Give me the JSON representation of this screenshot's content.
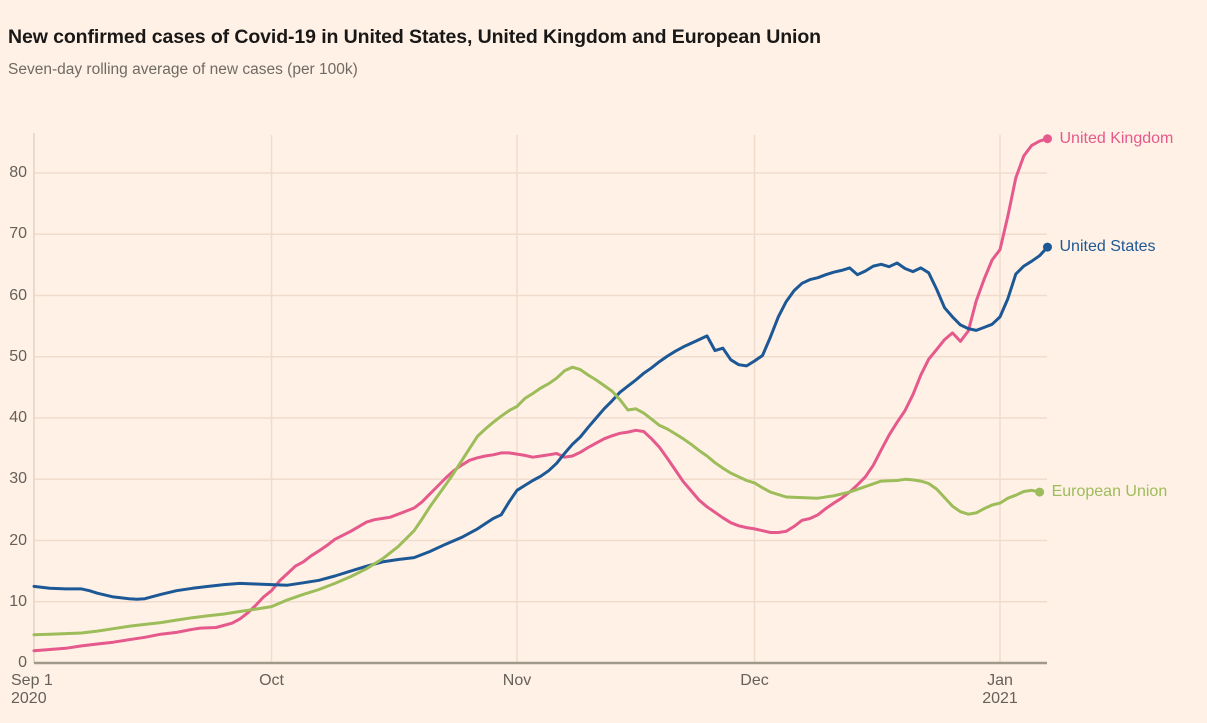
{
  "header": {
    "title": "New confirmed cases of Covid-19 in United States, United Kingdom and European Union",
    "subtitle": "Seven-day rolling average of new cases (per 100k)"
  },
  "style": {
    "background": "#fff1e5",
    "grid_color": "#f0dccd",
    "y_axis_line_color": "#e3d3c4",
    "zero_line_color": "#a09888",
    "tick_text_color": "#66605b",
    "title_text_color": "#1a1817",
    "subtitle_text_color": "#6f6b64"
  },
  "chart_data": {
    "type": "line",
    "title": "New confirmed cases of Covid-19 in United States, United Kingdom and European Union",
    "subtitle": "Seven-day rolling average of new cases (per 100k)",
    "x_unit": "days since Sep 1, 2020",
    "grid": true,
    "legend_position": "line-end-labels-right",
    "y_axis": {
      "ticks": [
        0,
        10,
        20,
        30,
        40,
        50,
        60,
        70,
        80
      ],
      "max_visible": 86
    },
    "x_axis": {
      "ticks": [
        {
          "label": "Sep 1",
          "sublabel": "2020",
          "day": 0,
          "align": "left"
        },
        {
          "label": "Oct",
          "day": 30
        },
        {
          "label": "Nov",
          "day": 61
        },
        {
          "label": "Dec",
          "day": 91
        },
        {
          "label": "Jan",
          "sublabel": "2021",
          "day": 122
        }
      ]
    },
    "series": [
      {
        "label": "United Kingdom",
        "color": "#e5598c",
        "points": [
          [
            0,
            2.0
          ],
          [
            2,
            2.2
          ],
          [
            4,
            2.4
          ],
          [
            6,
            2.8
          ],
          [
            8,
            3.1
          ],
          [
            10,
            3.4
          ],
          [
            12,
            3.8
          ],
          [
            14,
            4.2
          ],
          [
            16,
            4.7
          ],
          [
            18,
            5.0
          ],
          [
            20,
            5.5
          ],
          [
            21,
            5.7
          ],
          [
            23,
            5.8
          ],
          [
            25,
            6.5
          ],
          [
            26,
            7.2
          ],
          [
            27,
            8.2
          ],
          [
            28,
            9.4
          ],
          [
            29,
            10.8
          ],
          [
            30,
            11.8
          ],
          [
            31,
            13.4
          ],
          [
            32,
            14.6
          ],
          [
            33,
            15.8
          ],
          [
            34,
            16.5
          ],
          [
            35,
            17.5
          ],
          [
            36,
            18.3
          ],
          [
            37,
            19.2
          ],
          [
            38,
            20.2
          ],
          [
            40,
            21.5
          ],
          [
            42,
            23.0
          ],
          [
            43,
            23.4
          ],
          [
            45,
            23.8
          ],
          [
            47,
            24.8
          ],
          [
            48,
            25.3
          ],
          [
            49,
            26.3
          ],
          [
            50,
            27.6
          ],
          [
            51,
            28.9
          ],
          [
            52,
            30.2
          ],
          [
            53,
            31.4
          ],
          [
            54,
            32.3
          ],
          [
            55,
            33.1
          ],
          [
            56,
            33.5
          ],
          [
            57,
            33.8
          ],
          [
            58,
            34.0
          ],
          [
            59,
            34.3
          ],
          [
            60,
            34.3
          ],
          [
            61,
            34.1
          ],
          [
            62,
            33.9
          ],
          [
            63,
            33.6
          ],
          [
            64,
            33.8
          ],
          [
            65,
            34.0
          ],
          [
            66,
            34.2
          ],
          [
            67,
            33.6
          ],
          [
            68,
            33.8
          ],
          [
            69,
            34.4
          ],
          [
            70,
            35.2
          ],
          [
            71,
            35.9
          ],
          [
            72,
            36.6
          ],
          [
            73,
            37.1
          ],
          [
            74,
            37.5
          ],
          [
            75,
            37.7
          ],
          [
            76,
            38.0
          ],
          [
            77,
            37.8
          ],
          [
            78,
            36.6
          ],
          [
            79,
            35.2
          ],
          [
            80,
            33.4
          ],
          [
            81,
            31.5
          ],
          [
            82,
            29.6
          ],
          [
            83,
            28.1
          ],
          [
            84,
            26.6
          ],
          [
            85,
            25.5
          ],
          [
            86,
            24.6
          ],
          [
            87,
            23.7
          ],
          [
            88,
            22.9
          ],
          [
            89,
            22.4
          ],
          [
            90,
            22.1
          ],
          [
            91,
            21.9
          ],
          [
            92,
            21.6
          ],
          [
            93,
            21.3
          ],
          [
            94,
            21.3
          ],
          [
            95,
            21.5
          ],
          [
            96,
            22.3
          ],
          [
            97,
            23.3
          ],
          [
            98,
            23.6
          ],
          [
            99,
            24.2
          ],
          [
            100,
            25.2
          ],
          [
            101,
            26.1
          ],
          [
            102,
            26.9
          ],
          [
            103,
            27.9
          ],
          [
            104,
            29.1
          ],
          [
            105,
            30.4
          ],
          [
            106,
            32.3
          ],
          [
            107,
            34.8
          ],
          [
            108,
            37.2
          ],
          [
            109,
            39.3
          ],
          [
            110,
            41.2
          ],
          [
            111,
            43.8
          ],
          [
            112,
            47.0
          ],
          [
            113,
            49.6
          ],
          [
            114,
            51.2
          ],
          [
            115,
            52.8
          ],
          [
            116,
            53.9
          ],
          [
            117,
            52.5
          ],
          [
            118,
            54.2
          ],
          [
            119,
            59.1
          ],
          [
            120,
            62.7
          ],
          [
            121,
            65.8
          ],
          [
            122,
            67.5
          ],
          [
            123,
            73.0
          ],
          [
            124,
            79.2
          ],
          [
            125,
            82.8
          ],
          [
            126,
            84.5
          ],
          [
            127,
            85.2
          ],
          [
            128,
            85.6
          ]
        ]
      },
      {
        "label": "United States",
        "color": "#1d5896",
        "points": [
          [
            0,
            12.5
          ],
          [
            2,
            12.2
          ],
          [
            4,
            12.1
          ],
          [
            6,
            12.1
          ],
          [
            7,
            11.8
          ],
          [
            8,
            11.4
          ],
          [
            10,
            10.8
          ],
          [
            12,
            10.5
          ],
          [
            13,
            10.4
          ],
          [
            14,
            10.5
          ],
          [
            16,
            11.2
          ],
          [
            18,
            11.8
          ],
          [
            20,
            12.2
          ],
          [
            22,
            12.5
          ],
          [
            24,
            12.8
          ],
          [
            26,
            13.0
          ],
          [
            28,
            12.9
          ],
          [
            30,
            12.8
          ],
          [
            32,
            12.7
          ],
          [
            34,
            13.1
          ],
          [
            36,
            13.5
          ],
          [
            38,
            14.2
          ],
          [
            40,
            15.0
          ],
          [
            42,
            15.8
          ],
          [
            44,
            16.5
          ],
          [
            46,
            16.9
          ],
          [
            48,
            17.2
          ],
          [
            50,
            18.2
          ],
          [
            52,
            19.4
          ],
          [
            54,
            20.5
          ],
          [
            56,
            21.9
          ],
          [
            58,
            23.6
          ],
          [
            59,
            24.2
          ],
          [
            60,
            26.3
          ],
          [
            61,
            28.2
          ],
          [
            62,
            29.0
          ],
          [
            63,
            29.8
          ],
          [
            64,
            30.5
          ],
          [
            65,
            31.4
          ],
          [
            66,
            32.6
          ],
          [
            67,
            34.2
          ],
          [
            68,
            35.7
          ],
          [
            69,
            36.9
          ],
          [
            70,
            38.5
          ],
          [
            71,
            40.0
          ],
          [
            72,
            41.5
          ],
          [
            73,
            42.8
          ],
          [
            74,
            44.2
          ],
          [
            75,
            45.2
          ],
          [
            76,
            46.2
          ],
          [
            77,
            47.3
          ],
          [
            78,
            48.2
          ],
          [
            79,
            49.2
          ],
          [
            80,
            50.1
          ],
          [
            81,
            50.9
          ],
          [
            82,
            51.6
          ],
          [
            83,
            52.2
          ],
          [
            84,
            52.8
          ],
          [
            85,
            53.4
          ],
          [
            86,
            51.0
          ],
          [
            87,
            51.4
          ],
          [
            88,
            49.5
          ],
          [
            89,
            48.7
          ],
          [
            90,
            48.5
          ],
          [
            91,
            49.3
          ],
          [
            92,
            50.2
          ],
          [
            93,
            53.2
          ],
          [
            94,
            56.5
          ],
          [
            95,
            59.0
          ],
          [
            96,
            60.8
          ],
          [
            97,
            62.0
          ],
          [
            98,
            62.6
          ],
          [
            99,
            62.9
          ],
          [
            100,
            63.4
          ],
          [
            101,
            63.8
          ],
          [
            102,
            64.1
          ],
          [
            103,
            64.5
          ],
          [
            104,
            63.4
          ],
          [
            105,
            64.0
          ],
          [
            106,
            64.8
          ],
          [
            107,
            65.1
          ],
          [
            108,
            64.7
          ],
          [
            109,
            65.3
          ],
          [
            110,
            64.4
          ],
          [
            111,
            63.9
          ],
          [
            112,
            64.5
          ],
          [
            113,
            63.7
          ],
          [
            114,
            61.0
          ],
          [
            115,
            58.0
          ],
          [
            116,
            56.5
          ],
          [
            117,
            55.2
          ],
          [
            118,
            54.6
          ],
          [
            119,
            54.3
          ],
          [
            120,
            54.8
          ],
          [
            121,
            55.3
          ],
          [
            122,
            56.5
          ],
          [
            123,
            59.5
          ],
          [
            124,
            63.5
          ],
          [
            125,
            64.8
          ],
          [
            126,
            65.6
          ],
          [
            127,
            66.5
          ],
          [
            128,
            67.9
          ]
        ]
      },
      {
        "label": "European Union",
        "color": "#9dbc5a",
        "points": [
          [
            0,
            4.6
          ],
          [
            2,
            4.7
          ],
          [
            4,
            4.8
          ],
          [
            6,
            4.9
          ],
          [
            8,
            5.2
          ],
          [
            10,
            5.6
          ],
          [
            12,
            6.0
          ],
          [
            14,
            6.3
          ],
          [
            16,
            6.6
          ],
          [
            18,
            7.0
          ],
          [
            20,
            7.4
          ],
          [
            22,
            7.7
          ],
          [
            24,
            8.0
          ],
          [
            26,
            8.4
          ],
          [
            28,
            8.8
          ],
          [
            30,
            9.2
          ],
          [
            32,
            10.3
          ],
          [
            34,
            11.2
          ],
          [
            36,
            12.0
          ],
          [
            38,
            13.0
          ],
          [
            40,
            14.1
          ],
          [
            42,
            15.4
          ],
          [
            44,
            17.0
          ],
          [
            46,
            19.0
          ],
          [
            48,
            21.6
          ],
          [
            49,
            23.5
          ],
          [
            50,
            25.5
          ],
          [
            51,
            27.3
          ],
          [
            52,
            29.1
          ],
          [
            53,
            31.0
          ],
          [
            54,
            33.0
          ],
          [
            55,
            35.0
          ],
          [
            56,
            37.0
          ],
          [
            57,
            38.2
          ],
          [
            58,
            39.3
          ],
          [
            59,
            40.3
          ],
          [
            60,
            41.2
          ],
          [
            61,
            41.9
          ],
          [
            62,
            43.2
          ],
          [
            63,
            44.0
          ],
          [
            64,
            44.9
          ],
          [
            65,
            45.6
          ],
          [
            66,
            46.5
          ],
          [
            67,
            47.7
          ],
          [
            68,
            48.3
          ],
          [
            69,
            47.9
          ],
          [
            70,
            47.0
          ],
          [
            71,
            46.2
          ],
          [
            72,
            45.3
          ],
          [
            73,
            44.4
          ],
          [
            74,
            43.0
          ],
          [
            75,
            41.3
          ],
          [
            76,
            41.5
          ],
          [
            77,
            40.8
          ],
          [
            78,
            39.8
          ],
          [
            79,
            38.8
          ],
          [
            80,
            38.2
          ],
          [
            81,
            37.4
          ],
          [
            82,
            36.6
          ],
          [
            83,
            35.7
          ],
          [
            84,
            34.7
          ],
          [
            85,
            33.8
          ],
          [
            86,
            32.7
          ],
          [
            87,
            31.8
          ],
          [
            88,
            31.0
          ],
          [
            89,
            30.4
          ],
          [
            90,
            29.8
          ],
          [
            91,
            29.4
          ],
          [
            92,
            28.6
          ],
          [
            93,
            27.9
          ],
          [
            95,
            27.1
          ],
          [
            97,
            27.0
          ],
          [
            99,
            26.9
          ],
          [
            101,
            27.3
          ],
          [
            103,
            27.9
          ],
          [
            105,
            28.8
          ],
          [
            107,
            29.7
          ],
          [
            109,
            29.8
          ],
          [
            110,
            30.0
          ],
          [
            111,
            29.9
          ],
          [
            112,
            29.7
          ],
          [
            113,
            29.3
          ],
          [
            114,
            28.4
          ],
          [
            115,
            27.0
          ],
          [
            116,
            25.6
          ],
          [
            117,
            24.7
          ],
          [
            118,
            24.3
          ],
          [
            119,
            24.5
          ],
          [
            120,
            25.2
          ],
          [
            121,
            25.8
          ],
          [
            122,
            26.1
          ],
          [
            123,
            26.9
          ],
          [
            124,
            27.4
          ],
          [
            125,
            28.0
          ],
          [
            126,
            28.2
          ],
          [
            127,
            27.9
          ]
        ]
      }
    ]
  }
}
